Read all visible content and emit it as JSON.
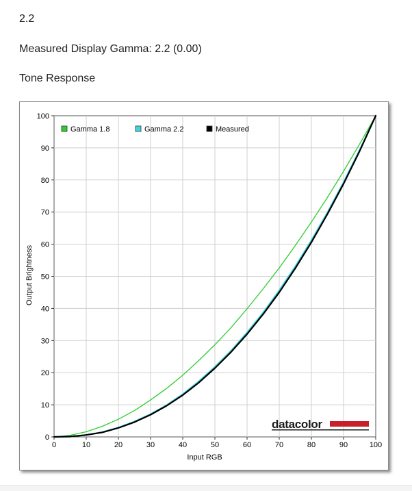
{
  "header": {
    "value": "2.2",
    "measured_label": "Measured Display Gamma: 2.2 (0.00)",
    "section_title": "Tone Response"
  },
  "brand": {
    "name": "datacolor",
    "color": "#c8202a"
  },
  "chart_data": {
    "type": "line",
    "title": "",
    "xlabel": "Input RGB",
    "ylabel": "Output Brightness",
    "xlim": [
      0,
      100
    ],
    "ylim": [
      0,
      100
    ],
    "xticks": [
      0,
      10,
      20,
      30,
      40,
      50,
      60,
      70,
      80,
      90,
      100
    ],
    "yticks": [
      0,
      10,
      20,
      30,
      40,
      50,
      60,
      70,
      80,
      90,
      100
    ],
    "grid": true,
    "legend_position": "top-left",
    "x": [
      0,
      5,
      10,
      15,
      20,
      25,
      30,
      35,
      40,
      45,
      50,
      55,
      60,
      65,
      70,
      75,
      80,
      85,
      90,
      95,
      100
    ],
    "series": [
      {
        "name": "Gamma 1.8",
        "color": "#2ecc2e",
        "values": [
          0,
          0.5,
          1.6,
          3.3,
          5.5,
          8.2,
          11.5,
          15.1,
          19.2,
          23.8,
          28.7,
          34.0,
          39.9,
          46.1,
          52.6,
          59.6,
          66.9,
          74.6,
          82.7,
          91.2,
          100
        ]
      },
      {
        "name": "Gamma 2.2",
        "color": "#3fd4e0",
        "values": [
          0,
          0.1,
          0.6,
          1.5,
          2.9,
          4.8,
          7.1,
          9.9,
          13.3,
          17.3,
          21.8,
          26.8,
          32.5,
          38.7,
          45.6,
          53.1,
          61.2,
          69.9,
          79.3,
          89.3,
          100
        ]
      },
      {
        "name": "Measured",
        "color": "#000000",
        "values": [
          0,
          0.1,
          0.6,
          1.4,
          2.8,
          4.6,
          6.9,
          9.7,
          13.0,
          16.9,
          21.4,
          26.4,
          32.0,
          38.2,
          45.0,
          52.5,
          60.6,
          69.4,
          78.8,
          89.0,
          100
        ]
      }
    ]
  }
}
